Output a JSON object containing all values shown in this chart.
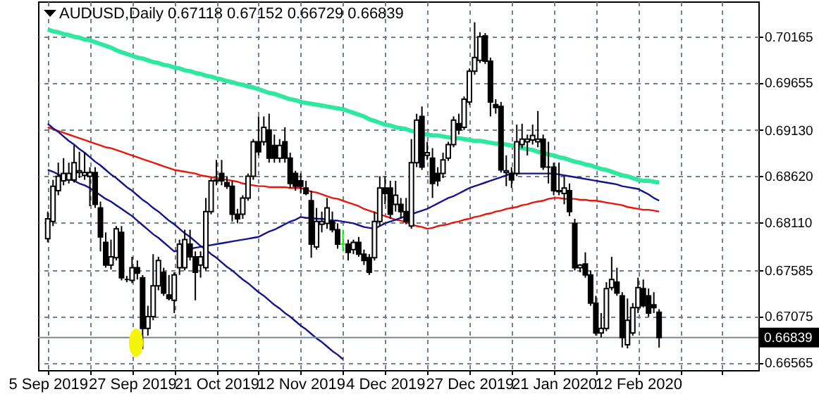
{
  "chart_data": {
    "type": "candlestick",
    "title": "AUDUSD,Daily 0.67118 0.67152 0.66729 0.66839",
    "categories": [
      "5 Sep 2019",
      null,
      null,
      null,
      null,
      null,
      null,
      null,
      null,
      null,
      null,
      null,
      null,
      null,
      null,
      null,
      "27 Sep 2019",
      null,
      null,
      null,
      null,
      null,
      null,
      null,
      null,
      null,
      null,
      null,
      null,
      null,
      null,
      null,
      "21 Oct 2019",
      null,
      null,
      null,
      null,
      null,
      null,
      null,
      null,
      null,
      null,
      null,
      null,
      null,
      null,
      null,
      "12 Nov 2019",
      null,
      null,
      null,
      null,
      null,
      null,
      null,
      null,
      null,
      null,
      null,
      null,
      null,
      null,
      null,
      "4 Dec 2019",
      null,
      null,
      null,
      null,
      null,
      null,
      null,
      null,
      null,
      null,
      null,
      null,
      null,
      null,
      null,
      "27 Dec 2019",
      null,
      null,
      null,
      null,
      null,
      null,
      null,
      null,
      null,
      null,
      null,
      null,
      null,
      null,
      null,
      "21 Jan 2020",
      null,
      null,
      null,
      null,
      null,
      null,
      null,
      null,
      null,
      null,
      null,
      null,
      null,
      null,
      null,
      "12 Feb 2020",
      null,
      null,
      null,
      null,
      null,
      null,
      null,
      null,
      null,
      null,
      null,
      null,
      null,
      null,
      null,
      null,
      null,
      null,
      null,
      null,
      null
    ],
    "ohlc": [
      [
        0.6793,
        0.6823,
        0.6789,
        0.6815
      ],
      [
        0.6812,
        0.6858,
        0.6807,
        0.6851
      ],
      [
        0.6846,
        0.6877,
        0.6841,
        0.6862
      ],
      [
        0.6857,
        0.6882,
        0.6852,
        0.6865
      ],
      [
        0.6858,
        0.6877,
        0.6854,
        0.6865
      ],
      [
        0.6858,
        0.6896,
        0.6855,
        0.6877
      ],
      [
        0.6866,
        0.6889,
        0.686,
        0.6868
      ],
      [
        0.6863,
        0.6888,
        0.6858,
        0.6866
      ],
      [
        0.6862,
        0.6872,
        0.6829,
        0.6866
      ],
      [
        0.6866,
        0.6872,
        0.6827,
        0.6831
      ],
      [
        0.6827,
        0.6834,
        0.6779,
        0.6795
      ],
      [
        0.6789,
        0.68,
        0.6761,
        0.6764
      ],
      [
        0.6764,
        0.6792,
        0.6759,
        0.6773
      ],
      [
        0.6772,
        0.6807,
        0.6769,
        0.6804
      ],
      [
        0.68,
        0.6807,
        0.6747,
        0.675
      ],
      [
        0.6748,
        0.6752,
        0.6745,
        0.6748
      ],
      [
        0.6747,
        0.6773,
        0.6744,
        0.6761
      ],
      [
        0.6761,
        0.6769,
        0.6748,
        0.6755
      ],
      [
        0.675,
        0.6753,
        0.6671,
        0.6694
      ],
      [
        0.6694,
        0.6719,
        0.6686,
        0.6707
      ],
      [
        0.6707,
        0.6776,
        0.6703,
        0.6741
      ],
      [
        0.6741,
        0.6773,
        0.6736,
        0.6769
      ],
      [
        0.6756,
        0.6761,
        0.673,
        0.6733
      ],
      [
        0.6731,
        0.6753,
        0.6725,
        0.6727
      ],
      [
        0.6725,
        0.6756,
        0.6711,
        0.6753
      ],
      [
        0.6761,
        0.6792,
        0.6753,
        0.6787
      ],
      [
        0.6761,
        0.6803,
        0.6758,
        0.6792
      ],
      [
        0.6787,
        0.6803,
        0.6769,
        0.6773
      ],
      [
        0.6773,
        0.6779,
        0.6725,
        0.6756
      ],
      [
        0.6764,
        0.6779,
        0.675,
        0.6773
      ],
      [
        0.6761,
        0.6838,
        0.6758,
        0.6823
      ],
      [
        0.6823,
        0.686,
        0.682,
        0.6857
      ],
      [
        0.6857,
        0.688,
        0.6852,
        0.6858
      ],
      [
        0.6865,
        0.688,
        0.6852,
        0.6857
      ],
      [
        0.6855,
        0.6862,
        0.6848,
        0.6851
      ],
      [
        0.6851,
        0.6857,
        0.6812,
        0.682
      ],
      [
        0.682,
        0.6826,
        0.681,
        0.6815
      ],
      [
        0.682,
        0.6841,
        0.6815,
        0.6838
      ],
      [
        0.6838,
        0.6865,
        0.6835,
        0.6862
      ],
      [
        0.6862,
        0.6903,
        0.6858,
        0.69
      ],
      [
        0.69,
        0.6928,
        0.6885,
        0.6889
      ],
      [
        0.69,
        0.6928,
        0.6896,
        0.6916
      ],
      [
        0.6913,
        0.6931,
        0.6877,
        0.6882
      ],
      [
        0.6896,
        0.6908,
        0.6877,
        0.6882
      ],
      [
        0.6882,
        0.6903,
        0.6877,
        0.6896
      ],
      [
        0.69,
        0.6916,
        0.6877,
        0.6882
      ],
      [
        0.6882,
        0.6888,
        0.6849,
        0.6854
      ],
      [
        0.6865,
        0.6868,
        0.6846,
        0.6851
      ],
      [
        0.6857,
        0.6865,
        0.6843,
        0.6851
      ],
      [
        0.6849,
        0.6857,
        0.6841,
        0.6843
      ],
      [
        0.6835,
        0.6846,
        0.6772,
        0.6787
      ],
      [
        0.6784,
        0.6827,
        0.6781,
        0.6812
      ],
      [
        0.6809,
        0.6823,
        0.68,
        0.6812
      ],
      [
        0.681,
        0.6838,
        0.6804,
        0.6827
      ],
      [
        0.6812,
        0.6823,
        0.68,
        0.6803
      ],
      [
        0.6803,
        0.681,
        0.6782,
        0.6787
      ],
      [
        0.6787,
        0.6803,
        0.6779,
        0.6787
      ],
      [
        0.6787,
        0.6792,
        0.6769,
        0.6778
      ],
      [
        0.6781,
        0.6792,
        0.6776,
        0.6789
      ],
      [
        0.6789,
        0.6795,
        0.6773,
        0.6776
      ],
      [
        0.6776,
        0.6781,
        0.6764,
        0.6769
      ],
      [
        0.6772,
        0.6776,
        0.6753,
        0.6756
      ],
      [
        0.6772,
        0.6823,
        0.6769,
        0.6812
      ],
      [
        0.6812,
        0.6862,
        0.6807,
        0.6849
      ],
      [
        0.6849,
        0.6862,
        0.6831,
        0.6843
      ],
      [
        0.6849,
        0.6857,
        0.6815,
        0.682
      ],
      [
        0.6831,
        0.6857,
        0.6823,
        0.6841
      ],
      [
        0.6831,
        0.6838,
        0.6815,
        0.6823
      ],
      [
        0.6823,
        0.6838,
        0.6809,
        0.6812
      ],
      [
        0.6807,
        0.6903,
        0.6804,
        0.6877
      ],
      [
        0.6877,
        0.6931,
        0.6872,
        0.6924
      ],
      [
        0.6928,
        0.6939,
        0.6869,
        0.6872
      ],
      [
        0.6885,
        0.69,
        0.688,
        0.6888
      ],
      [
        0.6882,
        0.6893,
        0.6838,
        0.6854
      ],
      [
        0.6865,
        0.6872,
        0.6851,
        0.6857
      ],
      [
        0.6865,
        0.6888,
        0.686,
        0.688
      ],
      [
        0.6882,
        0.69,
        0.6879,
        0.6897
      ],
      [
        0.6897,
        0.6928,
        0.6894,
        0.6924
      ],
      [
        0.692,
        0.6931,
        0.6908,
        0.6913
      ],
      [
        0.6916,
        0.695,
        0.6913,
        0.6947
      ],
      [
        0.6944,
        0.6981,
        0.6941,
        0.6978
      ],
      [
        0.6978,
        0.7032,
        0.6974,
        0.6993
      ],
      [
        0.699,
        0.7021,
        0.6987,
        0.7016
      ],
      [
        0.7017,
        0.702,
        0.6986,
        0.6989
      ],
      [
        0.6989,
        0.6993,
        0.6928,
        0.6944
      ],
      [
        0.6941,
        0.6947,
        0.6931,
        0.6938
      ],
      [
        0.6939,
        0.6944,
        0.6866,
        0.6869
      ],
      [
        0.6866,
        0.6885,
        0.6851,
        0.6868
      ],
      [
        0.6865,
        0.6872,
        0.6849,
        0.6858
      ],
      [
        0.6865,
        0.6919,
        0.6862,
        0.69
      ],
      [
        0.6897,
        0.692,
        0.6893,
        0.6903
      ],
      [
        0.69,
        0.6908,
        0.6885,
        0.6903
      ],
      [
        0.6902,
        0.6919,
        0.6897,
        0.6907
      ],
      [
        0.69,
        0.6934,
        0.6894,
        0.6903
      ],
      [
        0.6903,
        0.6908,
        0.6869,
        0.6872
      ],
      [
        0.6872,
        0.69,
        0.6854,
        0.6872
      ],
      [
        0.6872,
        0.6877,
        0.6841,
        0.6846
      ],
      [
        0.6846,
        0.6877,
        0.6841,
        0.6845
      ],
      [
        0.6843,
        0.6862,
        0.6831,
        0.6849
      ],
      [
        0.6846,
        0.6854,
        0.6818,
        0.6823
      ],
      [
        0.681,
        0.6815,
        0.6758,
        0.6761
      ],
      [
        0.6761,
        0.6765,
        0.6756,
        0.6764
      ],
      [
        0.6765,
        0.6778,
        0.675,
        0.6753
      ],
      [
        0.6753,
        0.6758,
        0.6719,
        0.6722
      ],
      [
        0.6722,
        0.673,
        0.6686,
        0.6689
      ],
      [
        0.6689,
        0.6711,
        0.6684,
        0.6694
      ],
      [
        0.6694,
        0.6745,
        0.6691,
        0.6738
      ],
      [
        0.6739,
        0.6773,
        0.6736,
        0.6748
      ],
      [
        0.6745,
        0.6761,
        0.673,
        0.6733
      ],
      [
        0.673,
        0.6734,
        0.6673,
        0.6684
      ],
      [
        0.6676,
        0.6727,
        0.6672,
        0.6703
      ],
      [
        0.6689,
        0.6722,
        0.6686,
        0.6717
      ],
      [
        0.6717,
        0.675,
        0.6711,
        0.6739
      ],
      [
        0.6738,
        0.6748,
        0.6717,
        0.6719
      ],
      [
        0.673,
        0.6738,
        0.6707,
        0.6711
      ],
      [
        0.672,
        0.6734,
        0.6711,
        0.6717
      ],
      [
        0.67118,
        0.67152,
        0.66729,
        0.66839
      ],
      null,
      null,
      null,
      null,
      null,
      null,
      null,
      null,
      null,
      null,
      null,
      null,
      null,
      null,
      null,
      null,
      null
    ],
    "colors": [
      "#ffffff",
      "#ffffff",
      "#ffffff",
      "#ffffff",
      "#ffffff",
      "#ffffff",
      "#ffffff",
      "#ffffff",
      "#ffffff",
      "#000000",
      "#000000",
      "#000000",
      "#ffffff",
      "#ffffff",
      "#000000",
      "#000000",
      "#ffffff",
      "#000000",
      "#000000",
      "#ffffff",
      "#ffffff",
      "#ffffff",
      "#000000",
      "#000000",
      "#ffffff",
      "#ffffff",
      "#ffffff",
      "#000000",
      "#000000",
      "#ffffff",
      "#ffffff",
      "#ffffff",
      "#ffffff",
      "#000000",
      "#000000",
      "#000000",
      "#000000",
      "#ffffff",
      "#ffffff",
      "#ffffff",
      "#000000",
      "#ffffff",
      "#000000",
      "#000000",
      "#ffffff",
      "#000000",
      "#000000",
      "#000000",
      "#000000",
      "#000000",
      "#000000",
      "#ffffff",
      "#ffffff",
      "#ffffff",
      "#000000",
      "#000000",
      "#00ff00",
      "#000000",
      "#ffffff",
      "#000000",
      "#000000",
      "#000000",
      "#ffffff",
      "#ffffff",
      "#000000",
      "#000000",
      "#ffffff",
      "#000000",
      "#000000",
      "#ffffff",
      "#ffffff",
      "#000000",
      "#ffffff",
      "#000000",
      "#000000",
      "#ffffff",
      "#ffffff",
      "#ffffff",
      "#000000",
      "#ffffff",
      "#ffffff",
      "#ffffff",
      "#ffffff",
      "#000000",
      "#000000",
      "#000000",
      "#000000",
      "#ffffff",
      "#000000",
      "#ffffff",
      "#ffffff",
      "#ffffff",
      "#ffffff",
      "#ffffff",
      "#000000",
      "#000000",
      "#000000",
      "#000000",
      "#ffffff",
      "#000000",
      "#000000",
      "#ffffff",
      "#000000",
      "#000000",
      "#000000",
      "#ffffff",
      "#ffffff",
      "#ffffff",
      "#000000",
      "#000000",
      "#ffffff",
      "#ffffff",
      "#ffffff",
      "#000000",
      "#000000",
      "#000000",
      "#000000",
      null,
      null,
      null,
      null,
      null,
      null,
      null,
      null,
      null,
      null,
      null,
      null,
      null,
      null,
      null,
      null,
      null
    ],
    "series": [
      {
        "type": "line",
        "color": "#2ee8a0",
        "values": [
          0.7024,
          0.7022,
          0.7021,
          0.7019,
          0.7018,
          0.7016,
          0.7015,
          0.7013,
          0.7012,
          0.701,
          0.7008,
          0.7006,
          0.7004,
          0.7001,
          0.6999,
          0.6997,
          0.6995,
          0.6993,
          0.6992,
          0.699,
          0.6988,
          0.6987,
          0.6985,
          0.6984,
          0.6982,
          0.6981,
          0.6979,
          0.6978,
          0.6976,
          0.6975,
          0.6973,
          0.6972,
          0.697,
          0.6969,
          0.6967,
          0.6966,
          0.6964,
          0.6963,
          0.6961,
          0.696,
          0.6958,
          0.6956,
          0.6954,
          0.6953,
          0.6951,
          0.6949,
          0.6947,
          0.6946,
          0.6944,
          0.6943,
          0.6942,
          0.6941,
          0.694,
          0.6939,
          0.6938,
          0.6937,
          0.6936,
          0.6934,
          0.6932,
          0.693,
          0.6928,
          0.6925,
          0.6923,
          0.6921,
          0.6919,
          0.6918,
          0.6916,
          0.6915,
          0.6914,
          0.6912,
          0.6911,
          0.6909,
          0.6908,
          0.6907,
          0.6907,
          0.6906,
          0.6905,
          0.6904,
          0.6904,
          0.6903,
          0.6902,
          0.6901,
          0.6901,
          0.69,
          0.6899,
          0.6898,
          0.6898,
          0.6897,
          0.6896,
          0.6895,
          0.6893,
          0.6892,
          0.6891,
          0.6889,
          0.6888,
          0.6886,
          0.6885,
          0.6883,
          0.6882,
          0.688,
          0.6878,
          0.6877,
          0.6875,
          0.6874,
          0.6872,
          0.687,
          0.6869,
          0.6867,
          0.6865,
          0.6863,
          0.6862,
          0.686,
          0.6858,
          0.6857,
          0.6857,
          0.6856,
          0.6855,
          null,
          null,
          null,
          null,
          null,
          null,
          null,
          null,
          null,
          null,
          null,
          null,
          null,
          null,
          null,
          null,
          null
        ]
      },
      {
        "type": "line",
        "color": "#e8160c",
        "values": [
          0.6916,
          0.6914,
          0.6912,
          0.691,
          0.6908,
          0.6906,
          0.6904,
          0.6902,
          0.69,
          0.6898,
          0.6896,
          0.6894,
          0.6893,
          0.6891,
          0.6889,
          0.6887,
          0.6885,
          0.6883,
          0.6881,
          0.6879,
          0.6877,
          0.6875,
          0.6873,
          0.6871,
          0.6869,
          0.6868,
          0.6867,
          0.6866,
          0.6865,
          0.6863,
          0.6862,
          0.6861,
          0.686,
          0.6859,
          0.6858,
          0.6857,
          0.6856,
          0.6854,
          0.6853,
          0.6852,
          0.6851,
          0.6851,
          0.685,
          0.685,
          0.685,
          0.685,
          0.6849,
          0.6849,
          0.6849,
          0.6847,
          0.6845,
          0.6844,
          0.6842,
          0.684,
          0.6838,
          0.6837,
          0.6835,
          0.6833,
          0.6831,
          0.6829,
          0.6826,
          0.6824,
          0.6822,
          0.682,
          0.6818,
          0.6816,
          0.6814,
          0.6813,
          0.6811,
          0.6809,
          0.6807,
          0.6806,
          0.6804,
          0.6805,
          0.6807,
          0.6808,
          0.6809,
          0.6811,
          0.6812,
          0.6814,
          0.6815,
          0.6817,
          0.6818,
          0.682,
          0.6821,
          0.6823,
          0.6824,
          0.6826,
          0.6827,
          0.6828,
          0.683,
          0.6831,
          0.6833,
          0.6834,
          0.6835,
          0.6837,
          0.6838,
          0.6838,
          0.6837,
          0.6837,
          0.6837,
          0.6836,
          0.6836,
          0.6835,
          0.6835,
          0.6834,
          0.6833,
          0.6832,
          0.6831,
          0.683,
          0.6828,
          0.6827,
          0.6826,
          0.6825,
          0.6825,
          0.6824,
          0.6823,
          null,
          null,
          null,
          null,
          null,
          null,
          null,
          null,
          null,
          null,
          null,
          null,
          null,
          null,
          null,
          null,
          null
        ]
      },
      {
        "type": "line",
        "color": "#14148c",
        "values": [
          0.6869,
          0.6867,
          0.6864,
          0.6862,
          0.6859,
          0.6857,
          0.6854,
          0.6852,
          0.6849,
          0.6845,
          0.6841,
          0.6837,
          0.6834,
          0.683,
          0.6826,
          0.6822,
          0.6818,
          0.6813,
          0.6808,
          0.6803,
          0.6798,
          0.6794,
          0.6789,
          0.6784,
          0.6779,
          0.678,
          0.6781,
          0.6782,
          0.6783,
          0.6784,
          0.6785,
          0.6786,
          0.6787,
          0.6788,
          0.6789,
          0.679,
          0.6791,
          0.6792,
          0.6793,
          0.6794,
          0.6795,
          0.6798,
          0.6801,
          0.6803,
          0.6806,
          0.6809,
          0.6812,
          0.6814,
          0.6817,
          0.6816,
          0.6816,
          0.6815,
          0.6815,
          0.6814,
          0.6813,
          0.6813,
          0.6812,
          0.6811,
          0.681,
          0.6808,
          0.6806,
          0.6805,
          0.6804,
          0.6807,
          0.681,
          0.6812,
          0.6814,
          0.6816,
          0.6818,
          0.682,
          0.6822,
          0.6824,
          0.6826,
          0.6829,
          0.6832,
          0.6835,
          0.6838,
          0.684,
          0.6843,
          0.6846,
          0.6849,
          0.6851,
          0.6853,
          0.6855,
          0.6857,
          0.6859,
          0.6861,
          0.6863,
          0.6865,
          0.6865,
          0.6865,
          0.6865,
          0.6865,
          0.6865,
          0.6865,
          0.6865,
          0.6865,
          0.6864,
          0.6863,
          0.6862,
          0.6861,
          0.686,
          0.6859,
          0.6858,
          0.6857,
          0.6856,
          0.6855,
          0.6854,
          0.6853,
          0.6851,
          0.685,
          0.6849,
          0.6848,
          0.6845,
          0.6842,
          0.6838,
          0.6835,
          null,
          null,
          null,
          null,
          null,
          null,
          null,
          null,
          null,
          null,
          null,
          null,
          null,
          null,
          null,
          null,
          null
        ]
      },
      {
        "type": "line",
        "color": "#14148c",
        "values": [
          0.692,
          0.6915,
          0.6911,
          0.6906,
          0.6901,
          0.6897,
          0.6892,
          0.6888,
          0.6883,
          0.6878,
          0.6874,
          0.6869,
          0.6864,
          0.686,
          0.6855,
          0.685,
          0.6846,
          0.6841,
          0.6836,
          0.6832,
          0.6827,
          0.6823,
          0.6818,
          0.6813,
          0.6809,
          0.6804,
          0.6799,
          0.6795,
          0.679,
          0.6785,
          0.6781,
          0.6776,
          0.6772,
          0.6767,
          0.6762,
          0.6758,
          0.6753,
          0.6748,
          0.6744,
          0.6739,
          0.6734,
          0.673,
          0.6725,
          0.672,
          0.6716,
          0.6711,
          0.6707,
          0.6702,
          0.6697,
          0.6693,
          0.6688,
          0.6683,
          0.6679,
          0.6674,
          0.6669,
          0.6665,
          0.666,
          null,
          null,
          null,
          null,
          null,
          null,
          null,
          null,
          null,
          null,
          null,
          null,
          null,
          null,
          null,
          null,
          null,
          null,
          null,
          null,
          null,
          null,
          null,
          null,
          null,
          null,
          null,
          null,
          null,
          null,
          null,
          null,
          null,
          null,
          null,
          null,
          null,
          null,
          null,
          null,
          null,
          null,
          null,
          null,
          null,
          null,
          null,
          null,
          null,
          null,
          null,
          null,
          null,
          null,
          null,
          null,
          null,
          null,
          null,
          null,
          null,
          null,
          null,
          null,
          null,
          null,
          null,
          null,
          null,
          null,
          null,
          null,
          null,
          null,
          null,
          null,
          null
        ]
      }
    ],
    "ref_lines": [
      {
        "axis": "y",
        "value": 0.66839,
        "label": "0.66839",
        "color": "#7b8794"
      }
    ],
    "ylim": [
      0.6648,
      0.7055
    ],
    "yticks": [
      0.66565,
      0.67075,
      0.67585,
      {
        "value": 0.6811,
        "label": "0.68110"
      },
      {
        "value": 0.6862,
        "label": "0.68620"
      },
      {
        "value": 0.6913,
        "label": "0.69130"
      },
      0.69655,
      0.70165
    ],
    "grid": true
  }
}
